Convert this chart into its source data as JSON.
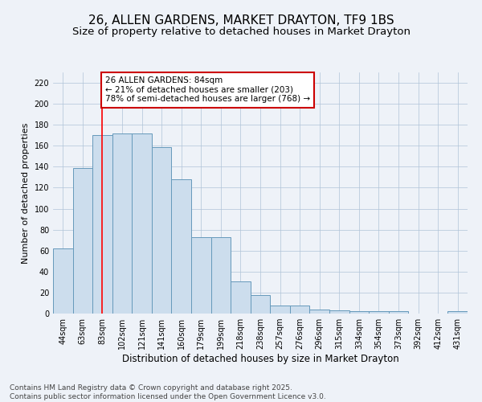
{
  "title": "26, ALLEN GARDENS, MARKET DRAYTON, TF9 1BS",
  "subtitle": "Size of property relative to detached houses in Market Drayton",
  "xlabel": "Distribution of detached houses by size in Market Drayton",
  "ylabel": "Number of detached properties",
  "categories": [
    "44sqm",
    "63sqm",
    "83sqm",
    "102sqm",
    "121sqm",
    "141sqm",
    "160sqm",
    "179sqm",
    "199sqm",
    "218sqm",
    "238sqm",
    "257sqm",
    "276sqm",
    "296sqm",
    "315sqm",
    "334sqm",
    "354sqm",
    "373sqm",
    "392sqm",
    "412sqm",
    "431sqm"
  ],
  "values": [
    62,
    139,
    170,
    172,
    172,
    159,
    128,
    73,
    73,
    31,
    18,
    8,
    8,
    4,
    3,
    2,
    2,
    2,
    0,
    0,
    2
  ],
  "bar_color": "#ccdded",
  "bar_edge_color": "#6699bb",
  "red_line_index": 2,
  "ylim": [
    0,
    230
  ],
  "yticks": [
    0,
    20,
    40,
    60,
    80,
    100,
    120,
    140,
    160,
    180,
    200,
    220
  ],
  "annotation_text": "26 ALLEN GARDENS: 84sqm\n← 21% of detached houses are smaller (203)\n78% of semi-detached houses are larger (768) →",
  "annotation_box_facecolor": "#ffffff",
  "annotation_box_edgecolor": "#cc0000",
  "background_color": "#eef2f8",
  "grid_color": "#b0c4d8",
  "footer": "Contains HM Land Registry data © Crown copyright and database right 2025.\nContains public sector information licensed under the Open Government Licence v3.0.",
  "title_fontsize": 11,
  "subtitle_fontsize": 9.5,
  "xlabel_fontsize": 8.5,
  "ylabel_fontsize": 8,
  "tick_fontsize": 7,
  "annotation_fontsize": 7.5,
  "footer_fontsize": 6.5
}
